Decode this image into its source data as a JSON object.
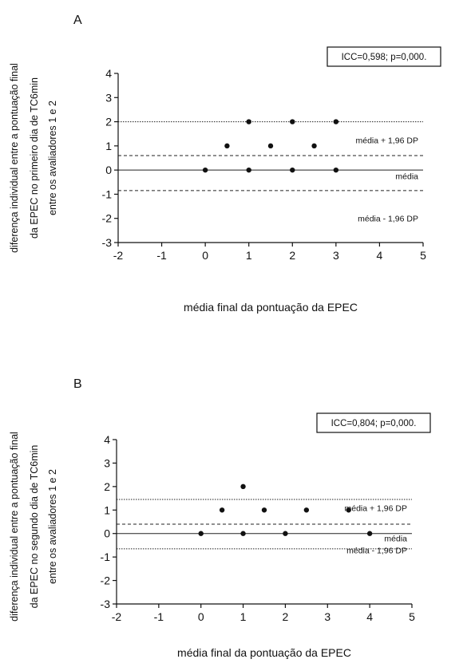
{
  "chart_data": [
    {
      "type": "scatter",
      "panel_label": "A",
      "stat_box": "ICC=0,598; p=0,000.",
      "xlabel": "média final da pontuação da EPEC",
      "ylabel_lines": [
        "diferença individual entre a pontuação final",
        "da EPEC no primeiro dia de TC6min",
        "entre os avaliadores 1 e 2"
      ],
      "xlim": [
        -2,
        5
      ],
      "ylim": [
        -3,
        4
      ],
      "x_ticks": [
        -2,
        -1,
        0,
        1,
        2,
        3,
        4,
        5
      ],
      "y_ticks": [
        -3,
        -2,
        -1,
        0,
        1,
        2,
        3,
        4
      ],
      "grid": false,
      "points": [
        {
          "x": 0,
          "y": 0
        },
        {
          "x": 1,
          "y": 0
        },
        {
          "x": 2,
          "y": 0
        },
        {
          "x": 3,
          "y": 0
        },
        {
          "x": 0.5,
          "y": 1
        },
        {
          "x": 1.5,
          "y": 1
        },
        {
          "x": 2.5,
          "y": 1
        },
        {
          "x": 1,
          "y": 2
        },
        {
          "x": 2,
          "y": 2
        },
        {
          "x": 3,
          "y": 2
        }
      ],
      "reference_lines": [
        {
          "y": 2.0,
          "style": "dotted",
          "label": ""
        },
        {
          "y": 0.6,
          "style": "dashed",
          "label": "média + 1,96 DP",
          "label_y": 1.25
        },
        {
          "y": 0.0,
          "style": "solid",
          "label": "média",
          "label_y": -0.25
        },
        {
          "y": -0.85,
          "style": "dashed",
          "label": "média - 1,96 DP",
          "label_y": -2.0
        }
      ]
    },
    {
      "type": "scatter",
      "panel_label": "B",
      "stat_box": "ICC=0,804; p=0,000.",
      "xlabel": "média final da pontuação da EPEC",
      "ylabel_lines": [
        "diferença individual entre a pontuação final",
        "da EPEC no segundo dia de TC6min",
        "entre os avaliadores 1 e 2"
      ],
      "xlim": [
        -2,
        5
      ],
      "ylim": [
        -3,
        4
      ],
      "x_ticks": [
        -2,
        -1,
        0,
        1,
        2,
        3,
        4,
        5
      ],
      "y_ticks": [
        -3,
        -2,
        -1,
        0,
        1,
        2,
        3,
        4
      ],
      "grid": false,
      "points": [
        {
          "x": 0,
          "y": 0
        },
        {
          "x": 1,
          "y": 0
        },
        {
          "x": 2,
          "y": 0
        },
        {
          "x": 4,
          "y": 0
        },
        {
          "x": 0.5,
          "y": 1
        },
        {
          "x": 1.5,
          "y": 1
        },
        {
          "x": 2.5,
          "y": 1
        },
        {
          "x": 3.5,
          "y": 1
        },
        {
          "x": 1,
          "y": 2
        }
      ],
      "reference_lines": [
        {
          "y": 1.45,
          "style": "dotted",
          "label": ""
        },
        {
          "y": 0.4,
          "style": "dashed",
          "label": "média + 1,96 DP",
          "label_y": 1.1
        },
        {
          "y": 0.0,
          "style": "solid",
          "label": "média",
          "label_y": -0.2
        },
        {
          "y": -0.65,
          "style": "dotted",
          "label": "média - 1,96 DP",
          "label_y": -0.7
        }
      ]
    }
  ]
}
